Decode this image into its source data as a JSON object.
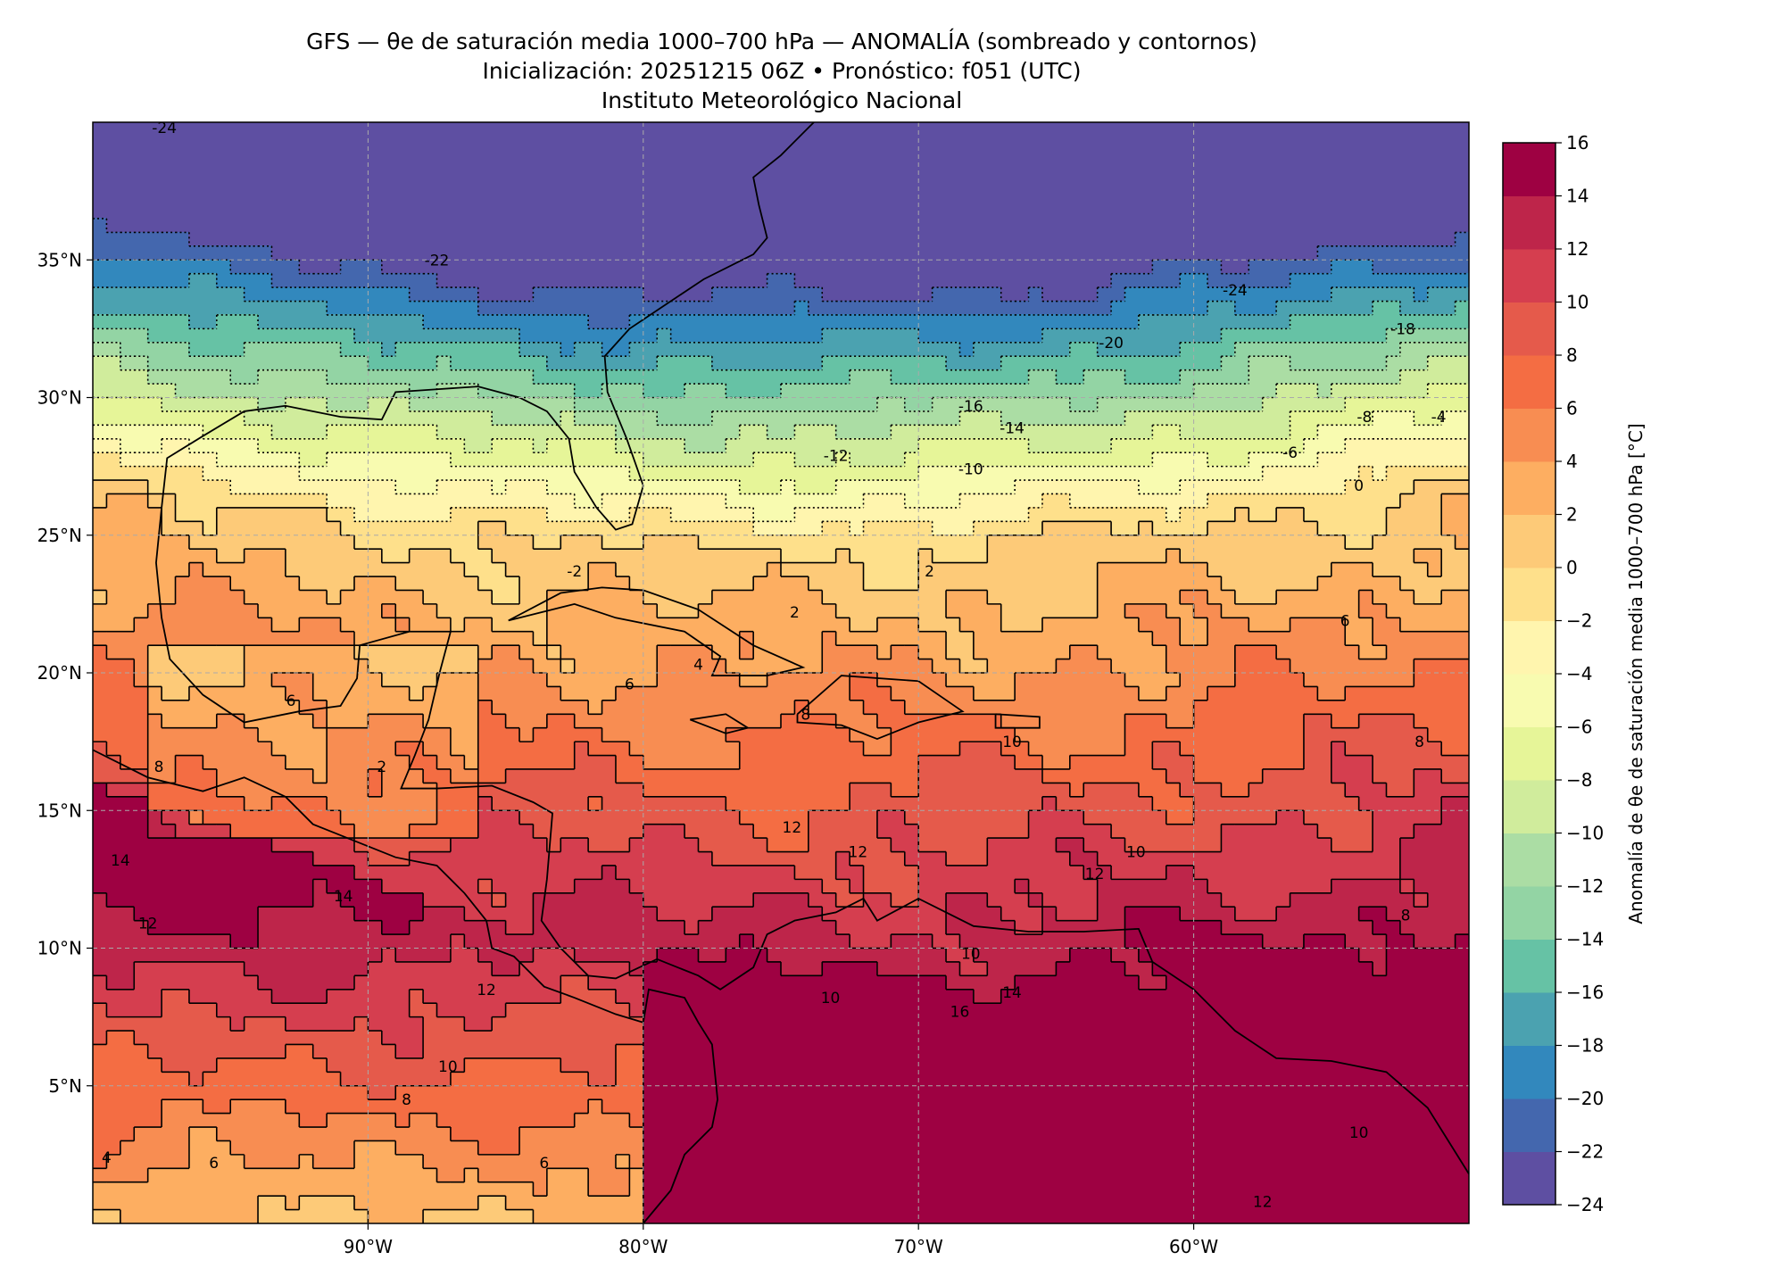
{
  "title": {
    "line1": "GFS — θe de saturación media 1000–700 hPa — ANOMALÍA (sombreado y contornos)",
    "line2": "Inicialización: 20251215 06Z   •   Pronóstico: f051 (UTC)",
    "line3": "Instituto Meteorológico Nacional"
  },
  "chart_data": {
    "type": "heatmap",
    "subtype": "filled contour map with contour lines",
    "lon_range": [
      -100,
      -50
    ],
    "lat_range": [
      0,
      40
    ],
    "grid": true,
    "x_ticks": [
      {
        "value": -90,
        "label": "90°W"
      },
      {
        "value": -80,
        "label": "80°W"
      },
      {
        "value": -70,
        "label": "70°W"
      },
      {
        "value": -60,
        "label": "60°W"
      }
    ],
    "y_ticks": [
      {
        "value": 5,
        "label": "5°N"
      },
      {
        "value": 10,
        "label": "10°N"
      },
      {
        "value": 15,
        "label": "15°N"
      },
      {
        "value": 20,
        "label": "20°N"
      },
      {
        "value": 25,
        "label": "25°N"
      },
      {
        "value": 30,
        "label": "30°N"
      },
      {
        "value": 35,
        "label": "35°N"
      }
    ],
    "colorbar": {
      "label": "Anomalía de θe de saturación media 1000–700 hPa [°C]",
      "range": [
        -24,
        16
      ],
      "ticks": [
        "16",
        "14",
        "12",
        "10",
        "8",
        "6",
        "4",
        "2",
        "0",
        "−2",
        "−4",
        "−6",
        "−8",
        "−10",
        "−12",
        "−14",
        "−16",
        "−18",
        "−20",
        "−22",
        "−24"
      ],
      "colors": [
        "#5e4fa2",
        "#4467ae",
        "#3288bd",
        "#4ba2b0",
        "#66c2a5",
        "#93d4a4",
        "#abdda4",
        "#d0ec9c",
        "#e6f598",
        "#f8fbb0",
        "#fff5ae",
        "#fee08b",
        "#fdca78",
        "#fdae61",
        "#f88d52",
        "#f46d43",
        "#e55a4b",
        "#d53e4f",
        "#be254a",
        "#9e0142"
      ]
    },
    "contour_labels": [
      {
        "text": "-24",
        "lon": -97.4,
        "lat": 39.8
      },
      {
        "text": "-22",
        "lon": -87.5,
        "lat": 35.0
      },
      {
        "text": "-24",
        "lon": -58.5,
        "lat": 33.9
      },
      {
        "text": "-18",
        "lon": -52.4,
        "lat": 32.5
      },
      {
        "text": "-20",
        "lon": -63.0,
        "lat": 32.0
      },
      {
        "text": "-16",
        "lon": -68.1,
        "lat": 29.7
      },
      {
        "text": "-14",
        "lon": -66.6,
        "lat": 28.9
      },
      {
        "text": "-12",
        "lon": -73.0,
        "lat": 27.9
      },
      {
        "text": "-10",
        "lon": -68.1,
        "lat": 27.4
      },
      {
        "text": "-8",
        "lon": -53.8,
        "lat": 29.3
      },
      {
        "text": "-4",
        "lon": -51.1,
        "lat": 29.3
      },
      {
        "text": "-6",
        "lon": -56.5,
        "lat": 28.0
      },
      {
        "text": "0",
        "lon": -54.0,
        "lat": 26.8
      },
      {
        "text": "-2",
        "lon": -82.5,
        "lat": 23.7
      },
      {
        "text": "2",
        "lon": -69.6,
        "lat": 23.7
      },
      {
        "text": "2",
        "lon": -74.5,
        "lat": 22.2
      },
      {
        "text": "4",
        "lon": -78.0,
        "lat": 20.3
      },
      {
        "text": "6",
        "lon": -80.5,
        "lat": 19.6
      },
      {
        "text": "8",
        "lon": -74.1,
        "lat": 18.5
      },
      {
        "text": "10",
        "lon": -66.6,
        "lat": 17.5
      },
      {
        "text": "12",
        "lon": -72.2,
        "lat": 13.5
      },
      {
        "text": "12",
        "lon": -74.6,
        "lat": 14.4
      },
      {
        "text": "14",
        "lon": -90.9,
        "lat": 11.9
      },
      {
        "text": "12",
        "lon": -98.0,
        "lat": 10.9
      },
      {
        "text": "12",
        "lon": -85.7,
        "lat": 8.5
      },
      {
        "text": "10",
        "lon": -87.1,
        "lat": 5.7
      },
      {
        "text": "8",
        "lon": -88.6,
        "lat": 4.5
      },
      {
        "text": "6",
        "lon": -83.6,
        "lat": 2.2
      },
      {
        "text": "6",
        "lon": -95.6,
        "lat": 2.2
      },
      {
        "text": "4",
        "lon": -99.5,
        "lat": 2.4
      },
      {
        "text": "16",
        "lon": -68.5,
        "lat": 7.7
      },
      {
        "text": "10",
        "lon": -68.1,
        "lat": 9.8
      },
      {
        "text": "14",
        "lon": -66.6,
        "lat": 8.4
      },
      {
        "text": "10",
        "lon": -73.2,
        "lat": 8.2
      },
      {
        "text": "8",
        "lon": -52.3,
        "lat": 11.2
      },
      {
        "text": "10",
        "lon": -62.1,
        "lat": 13.5
      },
      {
        "text": "12",
        "lon": -63.6,
        "lat": 12.7
      },
      {
        "text": "10",
        "lon": -54.0,
        "lat": 3.3
      },
      {
        "text": "12",
        "lon": -57.5,
        "lat": 0.8
      },
      {
        "text": "8",
        "lon": -51.8,
        "lat": 17.5
      },
      {
        "text": "6",
        "lon": -54.5,
        "lat": 21.9
      },
      {
        "text": "2",
        "lon": -89.5,
        "lat": 16.6
      },
      {
        "text": "6",
        "lon": -92.8,
        "lat": 19.0
      },
      {
        "text": "8",
        "lon": -97.6,
        "lat": 16.6
      },
      {
        "text": "14",
        "lon": -99.0,
        "lat": 13.2
      }
    ]
  }
}
